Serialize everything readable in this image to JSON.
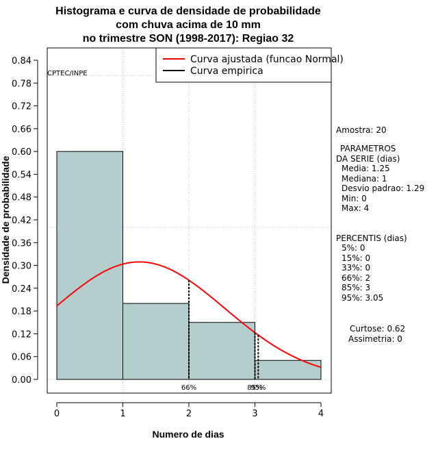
{
  "title_lines": [
    "Histograma e curva de densidade de probabilidade",
    "com chuva acima de 10 mm",
    "no trimestre SON (1998-2017): Regiao 32"
  ],
  "chart_data": {
    "type": "bar",
    "title": "Histograma e curva de densidade de probabilidade com chuva acima de 10 mm no trimestre SON (1998-2017): Regiao 32",
    "xlabel": "Numero de dias",
    "ylabel": "Densidade de probabilidade",
    "xlim": [
      -0.16,
      4.16
    ],
    "ylim": [
      -0.036,
      0.876
    ],
    "x_ticks": [
      "0",
      "1",
      "2",
      "3",
      "4"
    ],
    "y_ticks": [
      "0.00",
      "0.06",
      "0.12",
      "0.18",
      "0.24",
      "0.30",
      "0.36",
      "0.42",
      "0.48",
      "0.54",
      "0.60",
      "0.66",
      "0.72",
      "0.78",
      "0.84"
    ],
    "histogram": {
      "bins": [
        [
          0,
          1
        ],
        [
          1,
          2
        ],
        [
          2,
          3
        ],
        [
          3,
          4
        ]
      ],
      "values": [
        0.6,
        0.2,
        0.15,
        0.05
      ],
      "color": "#b4cdcd"
    },
    "normal_curve": {
      "name": "Curva ajustada (funcao Normal)",
      "color": "#ff0000",
      "mean": 1.25,
      "sd": 1.29
    },
    "empirical_curve": {
      "name": "Curva empirica",
      "color": "#000000"
    },
    "grid": true,
    "legend_position": "top-right",
    "percentile_markers": [
      {
        "x": 2,
        "label": "66%"
      },
      {
        "x": 3,
        "label": "85%"
      },
      {
        "x": 3.05,
        "label": "95%"
      }
    ],
    "annotation": "CPTEC/INPE"
  },
  "side_panel": {
    "amostra": "Amostra: 20",
    "parametros_title": "PARAMETROS",
    "parametros_subtitle": "DA SERIE (dias)",
    "media": "Media: 1.25",
    "mediana": "Mediana: 1",
    "desvio": "Desvio padrao: 1.29",
    "min": "Min: 0",
    "max": "Max: 4",
    "percentis_title": "PERCENTIS (dias)",
    "p5": "5%: 0",
    "p15": "15%: 0",
    "p33": "33%: 0",
    "p66": "66%: 2",
    "p85": "85%: 3",
    "p95": "95%: 3.05",
    "curtose": "Curtose: 0.62",
    "assimetria": "Assimetria: 0"
  }
}
